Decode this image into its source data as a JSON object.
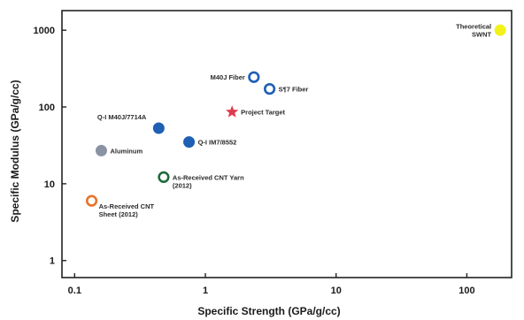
{
  "chart_data": {
    "type": "scatter",
    "xlabel": "Specific Strength (GPa/g/cc)",
    "ylabel": "Specific Modulus (GPa/g/cc)",
    "x_scale": "log",
    "y_scale": "log",
    "xlim": [
      0.08,
      220
    ],
    "ylim": [
      0.6,
      1800
    ],
    "x_ticks": [
      {
        "value": 0.1,
        "label": "0.1"
      },
      {
        "value": 1,
        "label": "1"
      },
      {
        "value": 10,
        "label": "10"
      },
      {
        "value": 100,
        "label": "100"
      }
    ],
    "y_ticks": [
      {
        "value": 1,
        "label": "1"
      },
      {
        "value": 10,
        "label": "10"
      },
      {
        "value": 100,
        "label": "100"
      },
      {
        "value": 1000,
        "label": "1000"
      }
    ],
    "grid": false,
    "points": [
      {
        "id": "theoretical-swnt",
        "x": 180,
        "y": 1000,
        "label_lines": [
          "Theoretical",
          "SWNT"
        ],
        "marker": "filled-circle",
        "color": "#f2f21a",
        "label_side": "left"
      },
      {
        "id": "m40j-fiber",
        "x": 2.35,
        "y": 245,
        "label_lines": [
          "M40J Fiber"
        ],
        "marker": "open-circle",
        "color": "#1f5fb4",
        "label_side": "left"
      },
      {
        "id": "ss7-fiber",
        "x": 3.1,
        "y": 172,
        "label_lines": [
          "S¶7 Fiber"
        ],
        "marker": "open-circle",
        "color": "#1f5fb4",
        "label_side": "right"
      },
      {
        "id": "project-target",
        "x": 1.6,
        "y": 86,
        "label_lines": [
          "Project Target"
        ],
        "marker": "star",
        "color": "#e03a4e",
        "label_side": "right"
      },
      {
        "id": "qi-m40j-7714a",
        "x": 0.44,
        "y": 53,
        "label_lines": [
          "Q-I M40J/7714A"
        ],
        "marker": "filled-circle",
        "color": "#1f5fb4",
        "label_side": "above-left"
      },
      {
        "id": "qi-im7-8552",
        "x": 0.75,
        "y": 35,
        "label_lines": [
          "Q-I IM7/8552"
        ],
        "marker": "filled-circle",
        "color": "#1f5fb4",
        "label_side": "right"
      },
      {
        "id": "aluminum",
        "x": 0.16,
        "y": 27,
        "label_lines": [
          "Aluminum"
        ],
        "marker": "filled-circle",
        "color": "#8a93a3",
        "label_side": "right"
      },
      {
        "id": "as-received-cnt-yarn",
        "x": 0.48,
        "y": 12.2,
        "label_lines": [
          "As-Received CNT Yarn",
          "(2012)"
        ],
        "marker": "open-circle",
        "color": "#1f6b3a",
        "label_side": "right"
      },
      {
        "id": "as-received-cnt-sheet",
        "x": 0.135,
        "y": 6,
        "label_lines": [
          "As-Received CNT",
          "Sheet (2012)"
        ],
        "marker": "open-circle",
        "color": "#e8742a",
        "label_side": "right-below"
      }
    ]
  }
}
